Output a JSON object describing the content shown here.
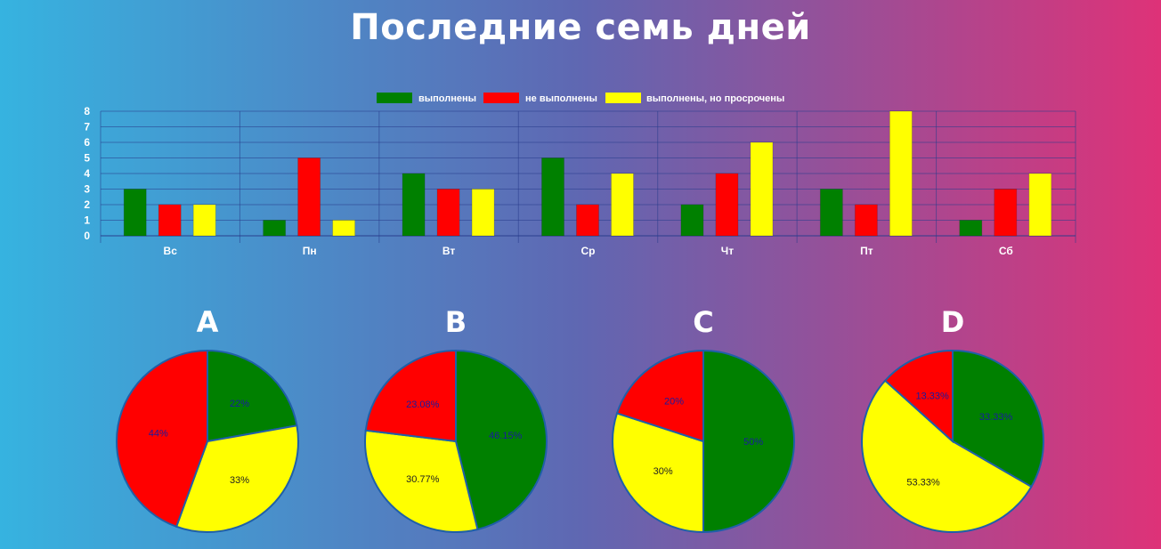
{
  "title": "Последние семь дней",
  "chart_data": [
    {
      "type": "bar",
      "categories": [
        "Вс",
        "Пн",
        "Вт",
        "Ср",
        "Чт",
        "Пт",
        "Сб"
      ],
      "series": [
        {
          "name": "выполнены",
          "color": "#008000",
          "values": [
            3,
            1,
            4,
            5,
            2,
            3,
            1
          ]
        },
        {
          "name": "не выполнены",
          "color": "#ff0000",
          "values": [
            2,
            5,
            3,
            2,
            4,
            2,
            3
          ]
        },
        {
          "name": "выполнены, но просрочены",
          "color": "#ffff00",
          "values": [
            2,
            1,
            3,
            4,
            6,
            8,
            4
          ]
        }
      ],
      "ylim": [
        0,
        8
      ],
      "yticks": [
        "0",
        "1",
        "2",
        "3",
        "4",
        "5",
        "6",
        "7",
        "8"
      ],
      "legend": "top-center",
      "grid": true
    },
    {
      "type": "pie",
      "title": "A",
      "slices": [
        {
          "value": 22,
          "label": "22%",
          "color": "#008000"
        },
        {
          "value": 33,
          "label": "33%",
          "color": "#ffff00"
        },
        {
          "value": 44,
          "label": "44%",
          "color": "#ff0000"
        }
      ]
    },
    {
      "type": "pie",
      "title": "B",
      "slices": [
        {
          "value": 46.15,
          "label": "46.15%",
          "color": "#008000"
        },
        {
          "value": 30.77,
          "label": "30.77%",
          "color": "#ffff00"
        },
        {
          "value": 23.08,
          "label": "23.08%",
          "color": "#ff0000"
        }
      ]
    },
    {
      "type": "pie",
      "title": "C",
      "slices": [
        {
          "value": 50,
          "label": "50%",
          "color": "#008000"
        },
        {
          "value": 30,
          "label": "30%",
          "color": "#ffff00"
        },
        {
          "value": 20,
          "label": "20%",
          "color": "#ff0000"
        }
      ]
    },
    {
      "type": "pie",
      "title": "D",
      "slices": [
        {
          "value": 33.33,
          "label": "33.33%",
          "color": "#008000"
        },
        {
          "value": 53.33,
          "label": "53.33%",
          "color": "#ffff00"
        },
        {
          "value": 13.33,
          "label": "13.33%",
          "color": "#ff0000"
        }
      ]
    }
  ]
}
